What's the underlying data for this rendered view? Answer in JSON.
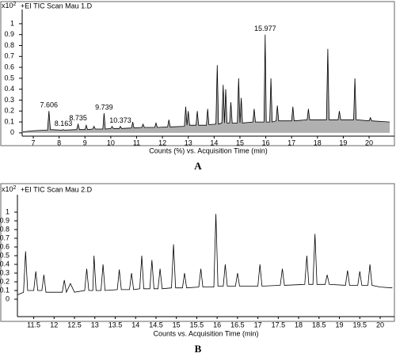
{
  "chart_data": [
    {
      "type": "line",
      "title": "+EI TIC Scan Mau 1.D",
      "y_unit": {
        "base": "x10",
        "exponent": "2"
      },
      "xlabel": "Counts (%) vs. Acquisition Time (min)",
      "panel_label": "A",
      "xlim": [
        6.57,
        20.98
      ],
      "ylim": [
        -0.03,
        1.13
      ],
      "xticks": [
        7,
        8,
        9,
        10,
        11,
        12,
        13,
        14,
        15,
        16,
        17,
        18,
        19,
        20
      ],
      "yticks": [
        0,
        0.1,
        0.2,
        0.3,
        0.4,
        0.5,
        0.6,
        0.7,
        0.8,
        0.9,
        1
      ],
      "color": "#000000",
      "area_fill": "#b0b0b0",
      "x": [
        6.6,
        7.0,
        7.55,
        7.606,
        7.66,
        8.1,
        8.163,
        8.2,
        8.68,
        8.735,
        8.79,
        9.0,
        9.05,
        9.1,
        9.3,
        9.35,
        9.4,
        9.69,
        9.739,
        9.79,
        10.0,
        10.05,
        10.1,
        10.33,
        10.373,
        10.42,
        10.8,
        10.85,
        10.9,
        11.2,
        11.25,
        11.3,
        11.7,
        11.75,
        11.8,
        12.2,
        12.25,
        12.3,
        12.85,
        12.9,
        12.95,
        13.0,
        13.05,
        13.3,
        13.35,
        13.4,
        13.7,
        13.75,
        13.8,
        14.07,
        14.12,
        14.17,
        14.3,
        14.35,
        14.4,
        14.45,
        14.5,
        14.6,
        14.65,
        14.7,
        14.9,
        14.95,
        15.0,
        15.05,
        15.1,
        15.5,
        15.55,
        15.6,
        15.93,
        15.977,
        16.02,
        16.15,
        16.2,
        16.25,
        16.4,
        16.45,
        16.5,
        17.0,
        17.05,
        17.1,
        17.6,
        17.65,
        17.7,
        18.35,
        18.4,
        18.45,
        18.8,
        18.85,
        18.9,
        19.4,
        19.45,
        19.5,
        20.0,
        20.05,
        20.1,
        20.8
      ],
      "values": [
        0.01,
        0.02,
        0.025,
        0.2,
        0.03,
        0.025,
        0.03,
        0.025,
        0.03,
        0.08,
        0.03,
        0.03,
        0.07,
        0.03,
        0.035,
        0.06,
        0.035,
        0.035,
        0.18,
        0.035,
        0.04,
        0.06,
        0.04,
        0.04,
        0.06,
        0.04,
        0.045,
        0.1,
        0.045,
        0.05,
        0.08,
        0.05,
        0.05,
        0.09,
        0.05,
        0.055,
        0.12,
        0.055,
        0.06,
        0.24,
        0.07,
        0.2,
        0.07,
        0.07,
        0.2,
        0.07,
        0.07,
        0.22,
        0.075,
        0.08,
        0.62,
        0.08,
        0.09,
        0.44,
        0.09,
        0.4,
        0.09,
        0.09,
        0.28,
        0.09,
        0.09,
        0.5,
        0.09,
        0.32,
        0.09,
        0.1,
        0.22,
        0.1,
        0.1,
        0.9,
        0.1,
        0.1,
        0.5,
        0.1,
        0.11,
        0.25,
        0.11,
        0.11,
        0.24,
        0.11,
        0.12,
        0.22,
        0.12,
        0.12,
        0.77,
        0.12,
        0.12,
        0.2,
        0.12,
        0.12,
        0.5,
        0.12,
        0.11,
        0.14,
        0.11,
        0.1
      ],
      "annotations": [
        {
          "x": 7.606,
          "y": 0.2,
          "text": "7.606"
        },
        {
          "x": 8.163,
          "y": 0.03,
          "text": "8.163"
        },
        {
          "x": 8.735,
          "y": 0.08,
          "text": "8.735"
        },
        {
          "x": 9.739,
          "y": 0.18,
          "text": "9.739"
        },
        {
          "x": 10.373,
          "y": 0.06,
          "text": "10.373"
        },
        {
          "x": 15.977,
          "y": 0.9,
          "text": "15.977"
        }
      ]
    },
    {
      "type": "line",
      "title": "+EI TIC Scan Mau 2.D",
      "y_unit": {
        "base": "x10",
        "exponent": "2"
      },
      "xlabel": "Counts vs. Acquisition Time (min)",
      "panel_label": "B",
      "xlim": [
        11.1,
        20.35
      ],
      "ylim": [
        -0.2,
        1.2
      ],
      "xticks": [
        11.5,
        12,
        12.5,
        13,
        13.5,
        14,
        14.5,
        15,
        15.5,
        16,
        16.5,
        17,
        17.5,
        18,
        18.5,
        19,
        19.5,
        20
      ],
      "yticks": [
        0,
        0.1,
        0.2,
        0.3,
        0.4,
        0.5,
        0.6,
        0.7,
        0.8,
        0.9,
        1
      ],
      "color": "#000000",
      "x": [
        11.1,
        11.25,
        11.3,
        11.35,
        11.5,
        11.55,
        11.6,
        11.7,
        11.75,
        11.8,
        12.2,
        12.25,
        12.3,
        12.4,
        12.5,
        12.75,
        12.8,
        12.85,
        12.95,
        12.98,
        13.03,
        13.15,
        13.2,
        13.25,
        13.55,
        13.6,
        13.65,
        13.85,
        13.9,
        13.95,
        14.1,
        14.15,
        14.2,
        14.35,
        14.4,
        14.45,
        14.55,
        14.6,
        14.65,
        14.88,
        14.93,
        14.98,
        15.15,
        15.2,
        15.25,
        15.55,
        15.6,
        15.65,
        15.92,
        15.97,
        16.02,
        16.15,
        16.2,
        16.25,
        16.45,
        16.5,
        16.55,
        17.0,
        17.05,
        17.1,
        17.55,
        17.6,
        17.65,
        18.15,
        18.2,
        18.25,
        18.35,
        18.4,
        18.45,
        18.65,
        18.7,
        18.75,
        19.15,
        19.2,
        19.25,
        19.45,
        19.5,
        19.55,
        19.7,
        19.75,
        19.8,
        20.0,
        20.3
      ],
      "values": [
        0.05,
        0.08,
        0.55,
        0.1,
        0.1,
        0.32,
        0.1,
        0.1,
        0.28,
        0.08,
        0.08,
        0.22,
        0.08,
        0.18,
        0.08,
        0.1,
        0.35,
        0.1,
        0.1,
        0.5,
        0.1,
        0.1,
        0.4,
        0.1,
        0.11,
        0.34,
        0.11,
        0.11,
        0.3,
        0.11,
        0.12,
        0.5,
        0.12,
        0.12,
        0.45,
        0.12,
        0.12,
        0.35,
        0.12,
        0.13,
        0.63,
        0.13,
        0.13,
        0.3,
        0.13,
        0.14,
        0.35,
        0.14,
        0.14,
        0.98,
        0.15,
        0.15,
        0.4,
        0.15,
        0.15,
        0.3,
        0.15,
        0.15,
        0.4,
        0.15,
        0.16,
        0.35,
        0.16,
        0.17,
        0.5,
        0.17,
        0.17,
        0.75,
        0.17,
        0.17,
        0.28,
        0.17,
        0.16,
        0.33,
        0.16,
        0.16,
        0.32,
        0.16,
        0.16,
        0.4,
        0.16,
        0.14,
        0.13
      ]
    }
  ]
}
